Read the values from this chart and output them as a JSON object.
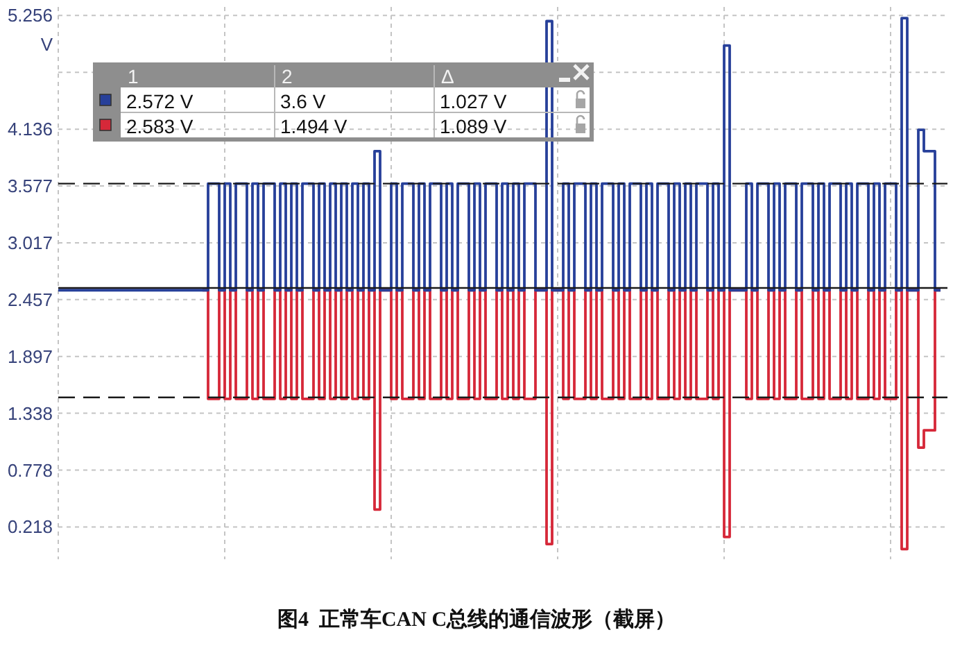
{
  "chart_data": [
    {
      "type": "step",
      "ylabel": "V",
      "categories": [
        null,
        null,
        null,
        null,
        null,
        null,
        null,
        null,
        null,
        null,
        null,
        null,
        null,
        null,
        null,
        null,
        null,
        null,
        null,
        null,
        null,
        null,
        null,
        null,
        null,
        null,
        null,
        null,
        null,
        null,
        null,
        null,
        null,
        null,
        null,
        null,
        null,
        null,
        null,
        null,
        null,
        null,
        null,
        null,
        null,
        null,
        null,
        null,
        null,
        null,
        null,
        null,
        null,
        null,
        null,
        null,
        null,
        null,
        null,
        null,
        null,
        null,
        null,
        null,
        null,
        null,
        null,
        null,
        null,
        null,
        null,
        null,
        null,
        null,
        null,
        null,
        null,
        null,
        null,
        null,
        null,
        null,
        null,
        null,
        null,
        null,
        null,
        null,
        null,
        null,
        null,
        null,
        null,
        null,
        null,
        null,
        null,
        null,
        null,
        null,
        null,
        null,
        null,
        null,
        null,
        null,
        null,
        null,
        null,
        null,
        null,
        null,
        null,
        null,
        null,
        null,
        null,
        null,
        null,
        null,
        null,
        null,
        null,
        null,
        null,
        null,
        null,
        null,
        null,
        null,
        null,
        null,
        null,
        null,
        null,
        null,
        null,
        null,
        null,
        null,
        null,
        null,
        null,
        null,
        null,
        null,
        null,
        null,
        null,
        null,
        null,
        null,
        null,
        null,
        null,
        null,
        null,
        null,
        null,
        null
      ],
      "series": [
        {
          "color": "#27409a",
          "values": [
            2.55,
            2.55,
            2.55,
            2.55,
            2.55,
            2.55,
            2.55,
            2.55,
            2.55,
            2.55,
            2.55,
            2.55,
            2.55,
            2.55,
            2.55,
            2.55,
            2.55,
            2.55,
            2.55,
            2.55,
            2.55,
            2.55,
            2.55,
            2.55,
            2.55,
            2.55,
            2.55,
            3.6,
            3.6,
            2.55,
            3.6,
            2.55,
            3.6,
            3.6,
            2.55,
            3.6,
            2.55,
            3.6,
            3.6,
            2.55,
            3.6,
            2.55,
            3.6,
            2.55,
            3.6,
            3.6,
            2.55,
            3.6,
            2.55,
            3.6,
            2.55,
            3.6,
            2.55,
            3.6,
            2.55,
            3.6,
            2.55,
            3.92,
            2.55,
            2.55,
            3.6,
            2.55,
            3.6,
            3.6,
            2.55,
            3.6,
            2.55,
            3.6,
            3.6,
            2.55,
            3.6,
            2.55,
            3.6,
            3.6,
            2.55,
            3.6,
            2.55,
            3.6,
            3.6,
            2.55,
            3.6,
            2.55,
            3.6,
            2.55,
            3.6,
            3.6,
            2.55,
            2.55,
            5.2,
            2.55,
            2.55,
            3.6,
            2.55,
            3.6,
            3.6,
            2.55,
            3.6,
            2.55,
            3.6,
            3.6,
            2.55,
            3.6,
            2.55,
            3.6,
            3.6,
            2.55,
            3.6,
            2.55,
            3.6,
            3.6,
            2.55,
            3.6,
            2.55,
            3.6,
            2.55,
            3.6,
            3.6,
            2.55,
            3.6,
            2.55,
            4.96,
            2.55,
            2.55,
            2.55,
            3.6,
            2.55,
            3.6,
            3.6,
            2.55,
            3.6,
            2.55,
            3.6,
            3.6,
            2.55,
            3.6,
            3.6,
            2.55,
            3.6,
            2.55,
            3.6,
            3.6,
            2.55,
            3.6,
            2.55,
            3.6,
            3.6,
            2.55,
            3.6,
            2.55,
            3.6,
            3.6,
            2.55,
            5.23,
            2.55,
            2.55,
            4.13,
            3.92,
            3.92,
            2.55,
            2.55
          ]
        },
        {
          "color": "#d62839",
          "values": [
            null,
            null,
            null,
            null,
            null,
            null,
            null,
            null,
            null,
            null,
            null,
            null,
            null,
            null,
            null,
            null,
            null,
            null,
            null,
            null,
            null,
            null,
            null,
            null,
            null,
            null,
            2.55,
            1.48,
            1.48,
            2.55,
            1.48,
            2.55,
            1.48,
            1.48,
            2.55,
            1.48,
            2.55,
            1.48,
            1.48,
            2.55,
            1.48,
            2.55,
            1.48,
            2.55,
            1.48,
            1.48,
            2.55,
            1.48,
            2.55,
            1.48,
            2.55,
            1.48,
            2.55,
            1.48,
            2.55,
            1.48,
            2.55,
            0.39,
            2.55,
            2.55,
            1.48,
            2.55,
            1.48,
            1.48,
            2.55,
            1.48,
            2.55,
            1.48,
            1.48,
            2.55,
            1.48,
            2.55,
            1.48,
            1.48,
            2.55,
            1.48,
            2.55,
            1.48,
            1.48,
            2.55,
            1.48,
            2.55,
            1.48,
            2.55,
            1.48,
            1.48,
            2.55,
            2.55,
            0.05,
            2.55,
            2.55,
            1.48,
            2.55,
            1.48,
            1.48,
            2.55,
            1.48,
            2.55,
            1.48,
            1.48,
            2.55,
            1.48,
            2.55,
            1.48,
            1.48,
            2.55,
            1.48,
            2.55,
            1.48,
            1.48,
            2.55,
            1.48,
            2.55,
            1.48,
            2.55,
            1.48,
            1.48,
            2.55,
            1.48,
            2.55,
            0.12,
            2.55,
            2.55,
            2.55,
            1.48,
            2.55,
            1.48,
            1.48,
            2.55,
            1.48,
            2.55,
            1.48,
            1.48,
            2.55,
            1.48,
            1.48,
            2.55,
            1.48,
            2.55,
            1.48,
            1.48,
            2.55,
            1.48,
            2.55,
            1.48,
            1.48,
            2.55,
            1.48,
            2.55,
            1.48,
            1.48,
            2.55,
            0,
            2.55,
            2.55,
            1.0,
            1.17,
            1.17,
            2.55,
            2.55
          ]
        }
      ],
      "ylim": [
        -0.1,
        5.34
      ],
      "yticks": [
        0.218,
        0.778,
        1.338,
        1.897,
        2.457,
        3.017,
        3.577,
        4.136,
        {
          "value": 4.696,
          "label": null
        },
        5.256
      ],
      "grid": true,
      "ref_lines": [
        {
          "axis": "y",
          "value": 3.6,
          "color": "#1a1a1a",
          "line_style": "dashed"
        },
        {
          "axis": "y",
          "value": 2.572,
          "color": "#1a1a1a",
          "line_style": "solid"
        },
        {
          "axis": "y",
          "value": 1.494,
          "color": "#1a1a1a",
          "line_style": "dashed"
        }
      ],
      "annotations": [
        "图4  正常车CAN C总线的通信波形（截屏）"
      ]
    },
    {
      "type": "other",
      "categories": [
        "1",
        "2",
        "Δ"
      ],
      "series": [
        {
          "values": [
            2.572,
            3.6,
            1.027
          ],
          "value_labels": [
            "2.572 V",
            "3.6 V",
            "1.027 V"
          ]
        },
        {
          "values": [
            2.583,
            1.494,
            1.089
          ],
          "value_labels": [
            "2.583 V",
            "1.494 V",
            "1.089 V"
          ]
        }
      ]
    }
  ]
}
